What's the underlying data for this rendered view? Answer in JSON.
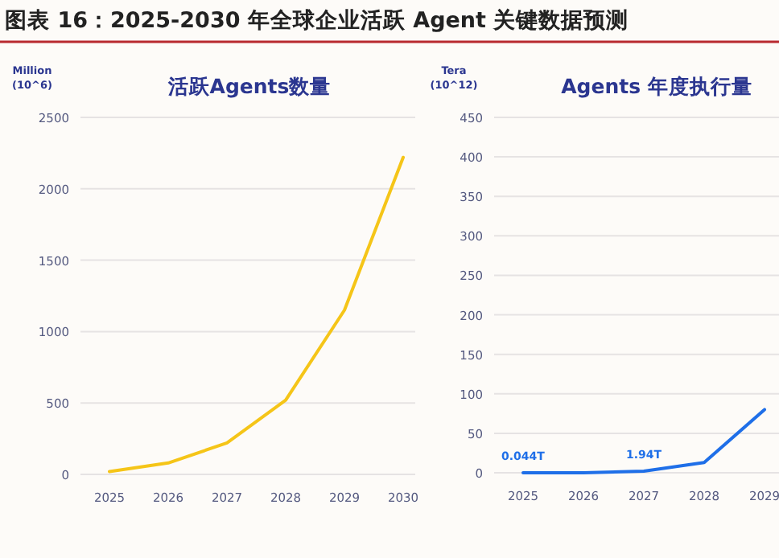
{
  "chart_data": [
    {
      "type": "line",
      "title": "活跃Agents数量",
      "ylabel": "Million (10^6)",
      "annotations": [
        "图表 16：2025-2030 年全球企业活跃 Agent 关键数据预测"
      ],
      "categories": [
        "2025",
        "2026",
        "2027",
        "2028",
        "2029",
        "2030"
      ],
      "series": [
        {
          "color": "#f5c518",
          "values": [
            20,
            80,
            220,
            520,
            1150,
            2220
          ]
        }
      ],
      "ylim": [
        0,
        2500
      ],
      "yticks": [
        0,
        500,
        1000,
        1500,
        2000,
        2500
      ],
      "grid": "y",
      "marker": "none"
    },
    {
      "type": "line",
      "title": "Agents 年度执行量",
      "ylabel": "Tera (10^12)",
      "categories": [
        "2025",
        "2026",
        "2027",
        "2028",
        "2029"
      ],
      "series": [
        {
          "color": "#1f6fe8",
          "values": [
            0.044,
            0,
            1.94,
            13,
            80
          ],
          "value_labels": [
            "0.044T",
            null,
            "1.94T",
            null,
            null
          ]
        }
      ],
      "ylim": [
        0,
        450
      ],
      "yticks": [
        0,
        50,
        100,
        150,
        200,
        250,
        300,
        350,
        400,
        450
      ],
      "grid": "y",
      "marker": "none"
    }
  ]
}
